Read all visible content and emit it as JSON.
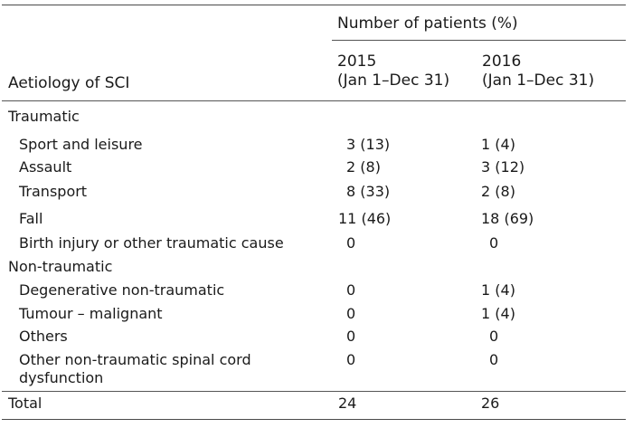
{
  "header": {
    "group_label": "Number of patients (%)",
    "col1_year": "2015",
    "col1_range": "(Jan 1–Dec 31)",
    "col2_year": "2016",
    "col2_range": "(Jan 1–Dec 31)",
    "row_label": "Aetiology of SCI"
  },
  "sections": [
    {
      "title": "Traumatic",
      "rows": [
        {
          "label": "Sport and leisure",
          "v2015": "3 (13)",
          "v2016": "1 (4)"
        },
        {
          "label": "Assault",
          "v2015": "2 (8)",
          "v2016": "3 (12)"
        },
        {
          "label": "Transport",
          "v2015": "8 (33)",
          "v2016": "2 (8)"
        },
        {
          "label": "Fall",
          "v2015": "11 (46)",
          "v2016": "18 (69)"
        },
        {
          "label": "Birth injury or other traumatic cause",
          "v2015": "0",
          "v2016": "0"
        }
      ]
    },
    {
      "title": "Non-traumatic",
      "rows": [
        {
          "label": "Degenerative non-traumatic",
          "v2015": "0",
          "v2016": "1 (4)"
        },
        {
          "label": "Tumour – malignant",
          "v2015": "0",
          "v2016": "1 (4)"
        },
        {
          "label": "Others",
          "v2015": "0",
          "v2016": "0"
        },
        {
          "label": "Other non-traumatic spinal cord",
          "label_line2": "dysfunction",
          "v2015": "0",
          "v2016": "0"
        }
      ]
    }
  ],
  "total": {
    "label": "Total",
    "v2015": "24",
    "v2016": "26"
  }
}
